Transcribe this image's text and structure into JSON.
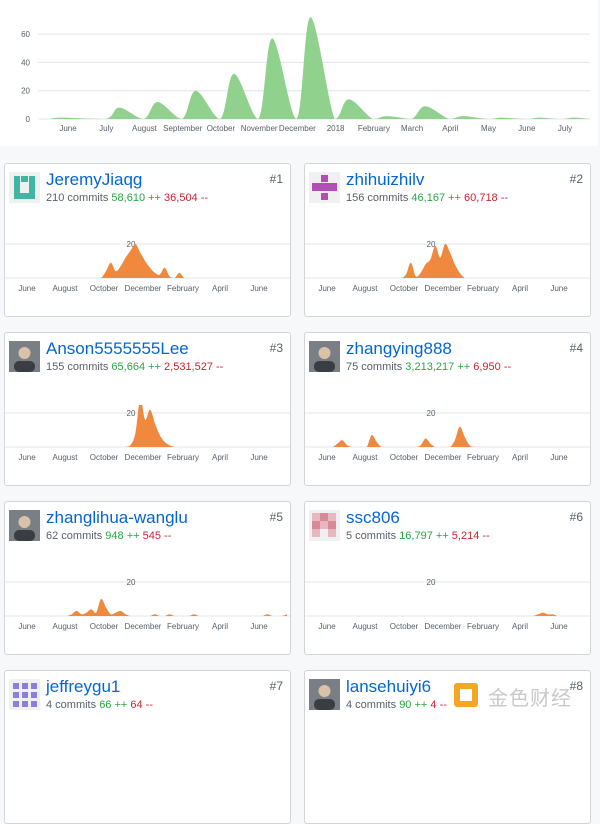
{
  "main_chart": {
    "yticks": [
      "0",
      "20",
      "40",
      "60"
    ],
    "xticks": [
      "June",
      "July",
      "August",
      "September",
      "October",
      "November",
      "December",
      "2018",
      "February",
      "March",
      "April",
      "May",
      "June",
      "July"
    ],
    "fill_color": "#8fd18d"
  },
  "chart_data": {
    "type": "area",
    "title": "",
    "ylim": [
      0,
      70
    ],
    "yticks": [
      0,
      20,
      40,
      60
    ],
    "categories": [
      "June",
      "July",
      "August",
      "September",
      "October",
      "November",
      "December",
      "2018",
      "February",
      "March",
      "April",
      "May",
      "June",
      "July"
    ],
    "series": [
      {
        "values": [
          1,
          8,
          12,
          20,
          32,
          57,
          72,
          14,
          2,
          9,
          2,
          1,
          1,
          1
        ]
      }
    ]
  },
  "contributors": [
    {
      "rank": "#1",
      "name": "JeremyJiaqg",
      "commits": "210 commits",
      "additions": "58,610 ++",
      "deletions": "36,504 --",
      "avatar": "teal-identicon"
    },
    {
      "rank": "#2",
      "name": "zhihuizhilv",
      "commits": "156 commits",
      "additions": "46,167 ++",
      "deletions": "60,718 --",
      "avatar": "magenta-identicon"
    },
    {
      "rank": "#3",
      "name": "Anson5555555Lee",
      "commits": "155 commits",
      "additions": "65,664 ++",
      "deletions": "2,531,527 --",
      "avatar": "photo-avatar"
    },
    {
      "rank": "#4",
      "name": "zhangying888",
      "commits": "75 commits",
      "additions": "3,213,217 ++",
      "deletions": "6,950 --",
      "avatar": "photo-avatar"
    },
    {
      "rank": "#5",
      "name": "zhanglihua-wanglu",
      "commits": "62 commits",
      "additions": "948 ++",
      "deletions": "545 --",
      "avatar": "photo-avatar"
    },
    {
      "rank": "#6",
      "name": "ssc806",
      "commits": "5 commits",
      "additions": "16,797 ++",
      "deletions": "5,214 --",
      "avatar": "pink-identicon"
    },
    {
      "rank": "#7",
      "name": "jeffreygu1",
      "commits": "4 commits",
      "additions": "66 ++",
      "deletions": "64 --",
      "avatar": "purple-identicon"
    },
    {
      "rank": "#8",
      "name": "lansehuiyi6",
      "commits": "4 commits",
      "additions": "90 ++",
      "deletions": "4 --",
      "avatar": "photo-avatar"
    }
  ],
  "mini_axis": {
    "label20": "20",
    "months": [
      "June",
      "August",
      "October",
      "December",
      "February",
      "April",
      "June"
    ]
  },
  "mini_profiles": [
    [
      0,
      0,
      0,
      0,
      0,
      0,
      0,
      0,
      0,
      0,
      0,
      0,
      0,
      0,
      0,
      0,
      0,
      0,
      0,
      4,
      9,
      4,
      7,
      12,
      16,
      20,
      15,
      10,
      6,
      3,
      2,
      6,
      1,
      0,
      3,
      0,
      0,
      0,
      0,
      0,
      0,
      0,
      0,
      0,
      0,
      0,
      0,
      0,
      0,
      0,
      0,
      0,
      0,
      0,
      0,
      0,
      0
    ],
    [
      0,
      0,
      0,
      0,
      0,
      0,
      0,
      0,
      0,
      0,
      0,
      0,
      0,
      0,
      0,
      0,
      0,
      0,
      0,
      2,
      9,
      1,
      3,
      8,
      11,
      19,
      12,
      20,
      15,
      8,
      3,
      0,
      0,
      0,
      0,
      0,
      0,
      0,
      0,
      0,
      0,
      0,
      0,
      0,
      0,
      0,
      0,
      0,
      0,
      0,
      0,
      0,
      0,
      0,
      0,
      0,
      0
    ],
    [
      0,
      0,
      0,
      0,
      0,
      0,
      0,
      0,
      0,
      0,
      0,
      0,
      0,
      0,
      0,
      0,
      0,
      0,
      0,
      0,
      0,
      0,
      0,
      0,
      1,
      8,
      28,
      16,
      22,
      14,
      7,
      3,
      1,
      0,
      0,
      0,
      0,
      0,
      0,
      0,
      0,
      0,
      0,
      0,
      0,
      0,
      0,
      0,
      0,
      0,
      0,
      0,
      0,
      0,
      0,
      0,
      0
    ],
    [
      0,
      0,
      0,
      0,
      0,
      2,
      4,
      1,
      0,
      0,
      0,
      0,
      7,
      3,
      0,
      0,
      0,
      0,
      0,
      0,
      0,
      0,
      1,
      5,
      2,
      0,
      0,
      0,
      0,
      4,
      12,
      6,
      1,
      0,
      0,
      0,
      0,
      0,
      0,
      0,
      0,
      0,
      0,
      0,
      0,
      0,
      0,
      0,
      0,
      0,
      0,
      0,
      0,
      0,
      0,
      0,
      0
    ],
    [
      0,
      0,
      0,
      0,
      0,
      0,
      0,
      0,
      0,
      0,
      0,
      0,
      1,
      3,
      1,
      2,
      4,
      2,
      10,
      5,
      1,
      2,
      3,
      1,
      0,
      0,
      0,
      0,
      0,
      1,
      0,
      0,
      1,
      0,
      0,
      0,
      0,
      1,
      0,
      0,
      0,
      0,
      0,
      0,
      0,
      0,
      0,
      0,
      0,
      0,
      0,
      0,
      1,
      0,
      0,
      0,
      1
    ],
    [
      0,
      0,
      0,
      0,
      0,
      0,
      0,
      0,
      0,
      0,
      0,
      0,
      0,
      0,
      0,
      0,
      0,
      0,
      0,
      0,
      0,
      0,
      0,
      0,
      0,
      0,
      0,
      0,
      0,
      0,
      0,
      0,
      0,
      0,
      0,
      0,
      0,
      0,
      0,
      0,
      0,
      0,
      0,
      0,
      0,
      0,
      1,
      2,
      1,
      1,
      0,
      0,
      0,
      0,
      0,
      0,
      0
    ]
  ],
  "mini_color": "#f0883e",
  "watermark": {
    "text": "金色财经"
  }
}
